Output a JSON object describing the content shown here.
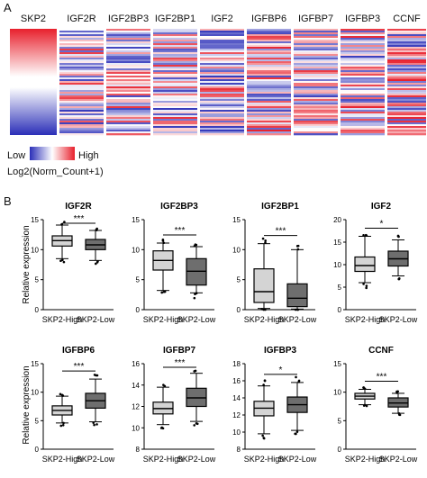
{
  "panel_a": {
    "letter": "A",
    "genes": [
      "SKP2",
      "IGF2R",
      "IGF2BP3",
      "IGF2BP1",
      "IGF2",
      "IGFBP6",
      "IGFBP7",
      "IGFBP3",
      "CCNF"
    ],
    "legend": {
      "low_label": "Low",
      "high_label": "High",
      "scale_label": "Log2(Norm_Count+1)",
      "low_color": "#2b2fb8",
      "mid_color": "#ffffff",
      "high_color": "#e8202c"
    }
  },
  "panel_b": {
    "letter": "B",
    "ylabel": "Relative expression"
  },
  "chart_data": [
    {
      "type": "box",
      "title": "IGF2R",
      "categories": [
        "SKP2-High",
        "SKP2-Low"
      ],
      "ylim": [
        0,
        15
      ],
      "yticks": [
        0,
        5,
        10,
        15
      ],
      "significance": "***",
      "boxes": [
        {
          "min": 8.5,
          "q1": 10.6,
          "median": 11.5,
          "q3": 12.3,
          "max": 14.1
        },
        {
          "min": 8.2,
          "q1": 10.0,
          "median": 10.8,
          "q3": 11.7,
          "max": 13.2
        }
      ]
    },
    {
      "type": "box",
      "title": "IGF2BP3",
      "categories": [
        "SKP2-High",
        "SKP2-Low"
      ],
      "ylim": [
        0,
        15
      ],
      "yticks": [
        0,
        5,
        10,
        15
      ],
      "significance": "***",
      "boxes": [
        {
          "min": 3.2,
          "q1": 6.6,
          "median": 8.2,
          "q3": 9.8,
          "max": 11.1
        },
        {
          "min": 2.8,
          "q1": 4.1,
          "median": 6.4,
          "q3": 8.5,
          "max": 10.5
        }
      ]
    },
    {
      "type": "box",
      "title": "IGF2BP1",
      "categories": [
        "SKP2-High",
        "SKP2-Low"
      ],
      "ylim": [
        0,
        15
      ],
      "yticks": [
        0,
        5,
        10,
        15
      ],
      "significance": "***",
      "boxes": [
        {
          "min": 0.2,
          "q1": 1.2,
          "median": 3.0,
          "q3": 6.8,
          "max": 11.0
        },
        {
          "min": 0.1,
          "q1": 0.5,
          "median": 1.9,
          "q3": 4.3,
          "max": 10.0
        }
      ]
    },
    {
      "type": "box",
      "title": "IGF2",
      "categories": [
        "SKP2-High",
        "SKP2-Low"
      ],
      "ylim": [
        0,
        20
      ],
      "yticks": [
        0,
        5,
        10,
        15,
        20
      ],
      "significance": "*",
      "boxes": [
        {
          "min": 6.0,
          "q1": 8.5,
          "median": 9.8,
          "q3": 11.7,
          "max": 16.3
        },
        {
          "min": 7.5,
          "q1": 9.7,
          "median": 11.3,
          "q3": 13.0,
          "max": 15.5
        }
      ]
    },
    {
      "type": "box",
      "title": "IGFBP6",
      "categories": [
        "SKP2-High",
        "SKP2-Low"
      ],
      "ylim": [
        0,
        15
      ],
      "yticks": [
        0,
        5,
        10,
        15
      ],
      "significance": "***",
      "boxes": [
        {
          "min": 4.6,
          "q1": 6.0,
          "median": 6.8,
          "q3": 7.6,
          "max": 9.3
        },
        {
          "min": 4.8,
          "q1": 7.2,
          "median": 8.5,
          "q3": 9.8,
          "max": 12.3
        }
      ]
    },
    {
      "type": "box",
      "title": "IGFBP7",
      "categories": [
        "SKP2-High",
        "SKP2-Low"
      ],
      "ylim": [
        8,
        16
      ],
      "yticks": [
        8,
        10,
        12,
        14,
        16
      ],
      "significance": "***",
      "boxes": [
        {
          "min": 10.3,
          "q1": 11.3,
          "median": 11.8,
          "q3": 12.4,
          "max": 13.8
        },
        {
          "min": 10.6,
          "q1": 12.0,
          "median": 12.8,
          "q3": 13.7,
          "max": 15.1
        }
      ]
    },
    {
      "type": "box",
      "title": "IGFBP3",
      "categories": [
        "SKP2-High",
        "SKP2-Low"
      ],
      "ylim": [
        8,
        18
      ],
      "yticks": [
        8,
        10,
        12,
        14,
        16,
        18
      ],
      "significance": "*",
      "boxes": [
        {
          "min": 9.8,
          "q1": 11.9,
          "median": 12.8,
          "q3": 13.6,
          "max": 15.4
        },
        {
          "min": 10.2,
          "q1": 12.3,
          "median": 13.2,
          "q3": 14.1,
          "max": 15.8
        }
      ]
    },
    {
      "type": "box",
      "title": "CCNF",
      "categories": [
        "SKP2-High",
        "SKP2-Low"
      ],
      "ylim": [
        0,
        15
      ],
      "yticks": [
        0,
        5,
        10,
        15
      ],
      "significance": "***",
      "boxes": [
        {
          "min": 7.8,
          "q1": 8.8,
          "median": 9.3,
          "q3": 9.8,
          "max": 10.5
        },
        {
          "min": 6.3,
          "q1": 7.4,
          "median": 8.1,
          "q3": 9.0,
          "max": 9.8
        }
      ]
    }
  ]
}
